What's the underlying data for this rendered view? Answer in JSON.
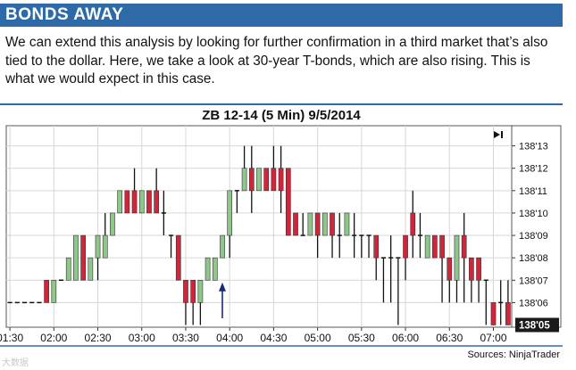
{
  "banner": {
    "title": "BONDS AWAY"
  },
  "intro": {
    "text": "We can extend this analysis by looking for further confirmation in a third market that’s also tied to the dollar. Here, we take a look at 30-year T-bonds, which are also rising. This is what we would expect in this case."
  },
  "source": "Sources: NinjaTrader",
  "watermark": "大数据",
  "colors": {
    "accent": "#2f6aa8",
    "up": "#8fc68a",
    "down": "#d0253a",
    "last_price_bg": "#1a1a1a"
  },
  "chart_data": {
    "type": "candlestick",
    "title": "ZB 12-14 (5 Min) 9/5/2014",
    "price_unit": "32nds",
    "x_tick_labels": [
      "01:30",
      "02:00",
      "02:30",
      "03:00",
      "03:30",
      "04:00",
      "04:30",
      "05:00",
      "05:30",
      "06:00",
      "06:30",
      "07:00"
    ],
    "y_tick_labels": [
      "138'06",
      "138'07",
      "138'08",
      "138'09",
      "138'10",
      "138'11",
      "138'12",
      "138'13"
    ],
    "y_tick_values": [
      6,
      7,
      8,
      9,
      10,
      11,
      12,
      13
    ],
    "ylim": [
      4.9,
      13.9
    ],
    "last_price_label": "138'05",
    "grid": true,
    "annotation": "up-arrow",
    "panel_icon": "scroll-end-icon",
    "candles": [
      {
        "t": "01:30",
        "o": 6,
        "h": 6,
        "l": 6,
        "c": 6
      },
      {
        "t": "01:35",
        "o": 6,
        "h": 6,
        "l": 6,
        "c": 6
      },
      {
        "t": "01:40",
        "o": 6,
        "h": 6,
        "l": 6,
        "c": 6
      },
      {
        "t": "01:45",
        "o": 6,
        "h": 6,
        "l": 6,
        "c": 6
      },
      {
        "t": "01:50",
        "o": 6,
        "h": 6,
        "l": 6,
        "c": 6
      },
      {
        "t": "01:55",
        "o": 7,
        "h": 7,
        "l": 6,
        "c": 6
      },
      {
        "t": "02:00",
        "o": 6,
        "h": 7,
        "l": 6,
        "c": 7
      },
      {
        "t": "02:05",
        "o": 7,
        "h": 7,
        "l": 7,
        "c": 7
      },
      {
        "t": "02:10",
        "o": 7,
        "h": 8,
        "l": 7,
        "c": 8
      },
      {
        "t": "02:15",
        "o": 7,
        "h": 9,
        "l": 7,
        "c": 9
      },
      {
        "t": "02:20",
        "o": 9,
        "h": 9,
        "l": 7,
        "c": 7
      },
      {
        "t": "02:25",
        "o": 7,
        "h": 8,
        "l": 7,
        "c": 8
      },
      {
        "t": "02:30",
        "o": 8,
        "h": 9,
        "l": 7,
        "c": 9
      },
      {
        "t": "02:35",
        "o": 8,
        "h": 10,
        "l": 8,
        "c": 9
      },
      {
        "t": "02:40",
        "o": 9,
        "h": 10,
        "l": 9,
        "c": 10
      },
      {
        "t": "02:45",
        "o": 10,
        "h": 11,
        "l": 10,
        "c": 11
      },
      {
        "t": "02:50",
        "o": 11,
        "h": 11,
        "l": 10,
        "c": 10
      },
      {
        "t": "02:55",
        "o": 11,
        "h": 12,
        "l": 10,
        "c": 10
      },
      {
        "t": "03:00",
        "o": 10,
        "h": 11,
        "l": 10,
        "c": 11
      },
      {
        "t": "03:05",
        "o": 11,
        "h": 11,
        "l": 10,
        "c": 10
      },
      {
        "t": "03:10",
        "o": 11,
        "h": 12,
        "l": 10,
        "c": 10
      },
      {
        "t": "03:15",
        "o": 10,
        "h": 11,
        "l": 9,
        "c": 10
      },
      {
        "t": "03:20",
        "o": 9,
        "h": 9,
        "l": 8,
        "c": 9
      },
      {
        "t": "03:25",
        "o": 9,
        "h": 9,
        "l": 7,
        "c": 7
      },
      {
        "t": "03:30",
        "o": 7,
        "h": 7,
        "l": 5,
        "c": 6
      },
      {
        "t": "03:35",
        "o": 7,
        "h": 7,
        "l": 5,
        "c": 6
      },
      {
        "t": "03:40",
        "o": 6,
        "h": 7,
        "l": 5,
        "c": 7
      },
      {
        "t": "03:45",
        "o": 7,
        "h": 8,
        "l": 7,
        "c": 8
      },
      {
        "t": "03:50",
        "o": 7,
        "h": 8,
        "l": 7,
        "c": 8
      },
      {
        "t": "03:55",
        "o": 8,
        "h": 9,
        "l": 8,
        "c": 9
      },
      {
        "t": "04:00",
        "o": 9,
        "h": 11,
        "l": 8,
        "c": 11
      },
      {
        "t": "04:05",
        "o": 11,
        "h": 11,
        "l": 10,
        "c": 11
      },
      {
        "t": "04:10",
        "o": 11,
        "h": 13,
        "l": 11,
        "c": 12
      },
      {
        "t": "04:15",
        "o": 12,
        "h": 13,
        "l": 10,
        "c": 11
      },
      {
        "t": "04:20",
        "o": 11,
        "h": 12,
        "l": 11,
        "c": 12
      },
      {
        "t": "04:25",
        "o": 12,
        "h": 12,
        "l": 11,
        "c": 11
      },
      {
        "t": "04:30",
        "o": 12,
        "h": 13,
        "l": 11,
        "c": 11
      },
      {
        "t": "04:35",
        "o": 12,
        "h": 13,
        "l": 10,
        "c": 11
      },
      {
        "t": "04:40",
        "o": 12,
        "h": 12,
        "l": 9,
        "c": 9
      },
      {
        "t": "04:45",
        "o": 10,
        "h": 10,
        "l": 9,
        "c": 9
      },
      {
        "t": "04:50",
        "o": 9,
        "h": 10,
        "l": 9,
        "c": 9
      },
      {
        "t": "04:55",
        "o": 9,
        "h": 10,
        "l": 9,
        "c": 10
      },
      {
        "t": "05:00",
        "o": 10,
        "h": 10,
        "l": 8,
        "c": 9
      },
      {
        "t": "05:05",
        "o": 9,
        "h": 10,
        "l": 9,
        "c": 10
      },
      {
        "t": "05:10",
        "o": 10,
        "h": 10,
        "l": 8,
        "c": 9
      },
      {
        "t": "05:15",
        "o": 9,
        "h": 10,
        "l": 8,
        "c": 9
      },
      {
        "t": "05:20",
        "o": 9,
        "h": 10,
        "l": 9,
        "c": 10
      },
      {
        "t": "05:25",
        "o": 9,
        "h": 10,
        "l": 8,
        "c": 9
      },
      {
        "t": "05:30",
        "o": 9,
        "h": 9,
        "l": 8,
        "c": 9
      },
      {
        "t": "05:35",
        "o": 9,
        "h": 9,
        "l": 8,
        "c": 9
      },
      {
        "t": "05:40",
        "o": 9,
        "h": 9,
        "l": 7,
        "c": 8
      },
      {
        "t": "05:45",
        "o": 8,
        "h": 8,
        "l": 6,
        "c": 8
      },
      {
        "t": "05:50",
        "o": 8,
        "h": 9,
        "l": 6,
        "c": 8
      },
      {
        "t": "05:55",
        "o": 8,
        "h": 8,
        "l": 5,
        "c": 8
      },
      {
        "t": "06:00",
        "o": 9,
        "h": 9,
        "l": 7,
        "c": 8
      },
      {
        "t": "06:05",
        "o": 10,
        "h": 11,
        "l": 8,
        "c": 9
      },
      {
        "t": "06:10",
        "o": 9,
        "h": 10,
        "l": 8,
        "c": 9
      },
      {
        "t": "06:15",
        "o": 8,
        "h": 9,
        "l": 8,
        "c": 9
      },
      {
        "t": "06:20",
        "o": 9,
        "h": 9,
        "l": 8,
        "c": 8
      },
      {
        "t": "06:25",
        "o": 9,
        "h": 9,
        "l": 6,
        "c": 8
      },
      {
        "t": "06:30",
        "o": 8,
        "h": 8,
        "l": 6,
        "c": 7
      },
      {
        "t": "06:35",
        "o": 7,
        "h": 9,
        "l": 6,
        "c": 9
      },
      {
        "t": "06:40",
        "o": 9,
        "h": 10,
        "l": 6,
        "c": 8
      },
      {
        "t": "06:45",
        "o": 8,
        "h": 8,
        "l": 6,
        "c": 7
      },
      {
        "t": "06:50",
        "o": 8,
        "h": 8,
        "l": 6,
        "c": 7
      },
      {
        "t": "06:55",
        "o": 7,
        "h": 7,
        "l": 5,
        "c": 7
      },
      {
        "t": "07:00",
        "o": 6,
        "h": 6,
        "l": 5,
        "c": 5
      },
      {
        "t": "07:05",
        "o": 6,
        "h": 7,
        "l": 5,
        "c": 6
      },
      {
        "t": "07:10",
        "o": 6,
        "h": 7,
        "l": 5,
        "c": 5
      }
    ]
  }
}
